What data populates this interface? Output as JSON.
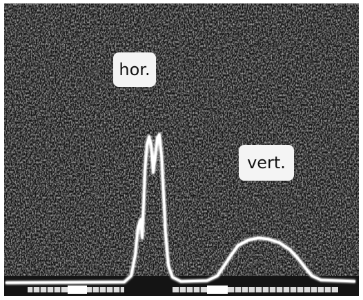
{
  "labels": {
    "hor": "hor.",
    "vert": "vert."
  }
}
